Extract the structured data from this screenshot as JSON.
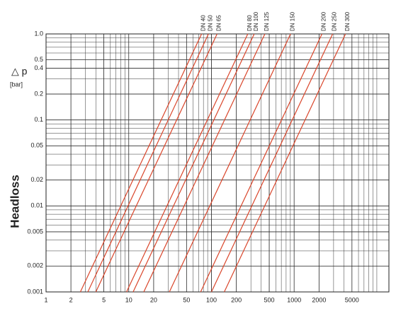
{
  "chart_data": {
    "type": "line",
    "y_label": "Headloss",
    "y_symbol": "△ p",
    "y_unit": "[bar]",
    "xscale": "log",
    "yscale": "log",
    "grid": true,
    "minor_grid": true,
    "xlim": [
      1,
      14000
    ],
    "ylim": [
      0.001,
      1
    ],
    "xticks": [
      1,
      2,
      5,
      10,
      20,
      50,
      100,
      200,
      500,
      1000,
      2000,
      5000
    ],
    "yticks": [
      {
        "value": 1,
        "label": "1.0"
      },
      0.5,
      0.4,
      0.2,
      0.1,
      0.05,
      0.02,
      0.01,
      0.005,
      0.002,
      0.001
    ],
    "series": [
      {
        "name": "DN 40",
        "color": "#d9452a",
        "x": [
          2.6,
          76
        ],
        "values": [
          0.001,
          1
        ]
      },
      {
        "name": "DN 50",
        "color": "#d9452a",
        "x": [
          3.2,
          92
        ],
        "values": [
          0.001,
          1
        ]
      },
      {
        "name": "DN 65",
        "color": "#d9452a",
        "x": [
          4.0,
          117
        ],
        "values": [
          0.001,
          1
        ]
      },
      {
        "name": "DN 80",
        "color": "#d9452a",
        "x": [
          9.4,
          275
        ],
        "values": [
          0.001,
          1
        ]
      },
      {
        "name": "DN 100",
        "color": "#d9452a",
        "x": [
          11.3,
          329
        ],
        "values": [
          0.001,
          1
        ]
      },
      {
        "name": "DN 125",
        "color": "#d9452a",
        "x": [
          15.2,
          443
        ],
        "values": [
          0.001,
          1
        ]
      },
      {
        "name": "DN 150",
        "color": "#d9452a",
        "x": [
          31,
          905
        ],
        "values": [
          0.001,
          1
        ]
      },
      {
        "name": "DN 200",
        "color": "#d9452a",
        "x": [
          74,
          2170
        ],
        "values": [
          0.001,
          1
        ]
      },
      {
        "name": "DN 250",
        "color": "#d9452a",
        "x": [
          100,
          2920
        ],
        "values": [
          0.001,
          1
        ]
      },
      {
        "name": "DN 300",
        "color": "#d9452a",
        "x": [
          143,
          4180
        ],
        "values": [
          0.001,
          1
        ]
      }
    ]
  }
}
